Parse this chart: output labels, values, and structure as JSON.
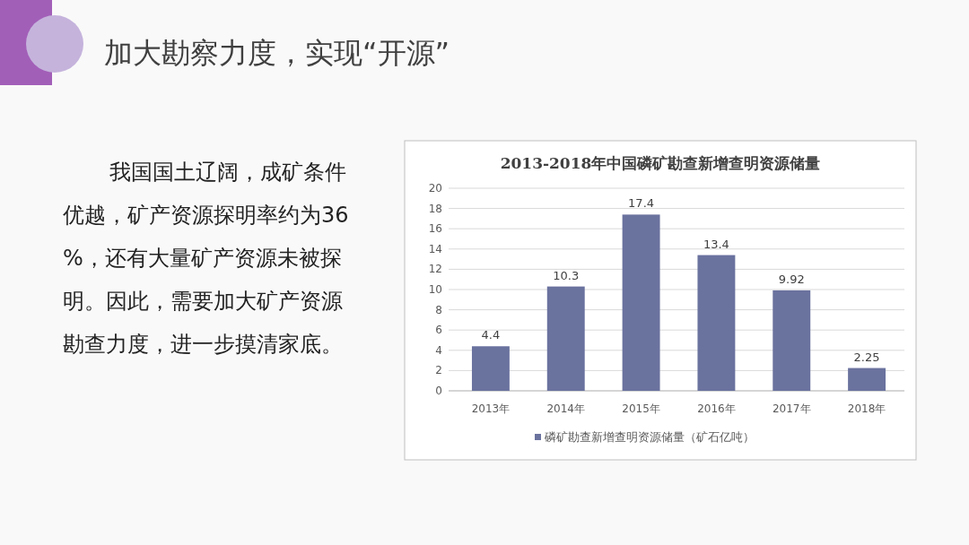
{
  "chart_data": {
    "type": "bar",
    "title": "2013-2018年中国磷矿勘查新增查明资源储量",
    "categories": [
      "2013年",
      "2014年",
      "2015年",
      "2016年",
      "2017年",
      "2018年"
    ],
    "series": [
      {
        "name": "磷矿勘查新增查明资源储量（矿石亿吨）",
        "color": "#6a729e",
        "values": [
          4.4,
          10.3,
          17.4,
          13.4,
          9.92,
          2.25
        ]
      }
    ],
    "ylim": [
      0,
      20
    ],
    "yticks": [
      0,
      2,
      4,
      6,
      8,
      10,
      12,
      14,
      16,
      18,
      20
    ],
    "grid": "y",
    "legend": "bottom",
    "data_labels": true,
    "annotations": [
      "加大勘察力度，实现“开源”",
      "我国国土辽阔，成矿条件优越，矿产资源探明率约为36%，还有大量矿产资源未被探明。因此，需要加大矿产资源勘查力度，进一步摸清家底。"
    ]
  }
}
